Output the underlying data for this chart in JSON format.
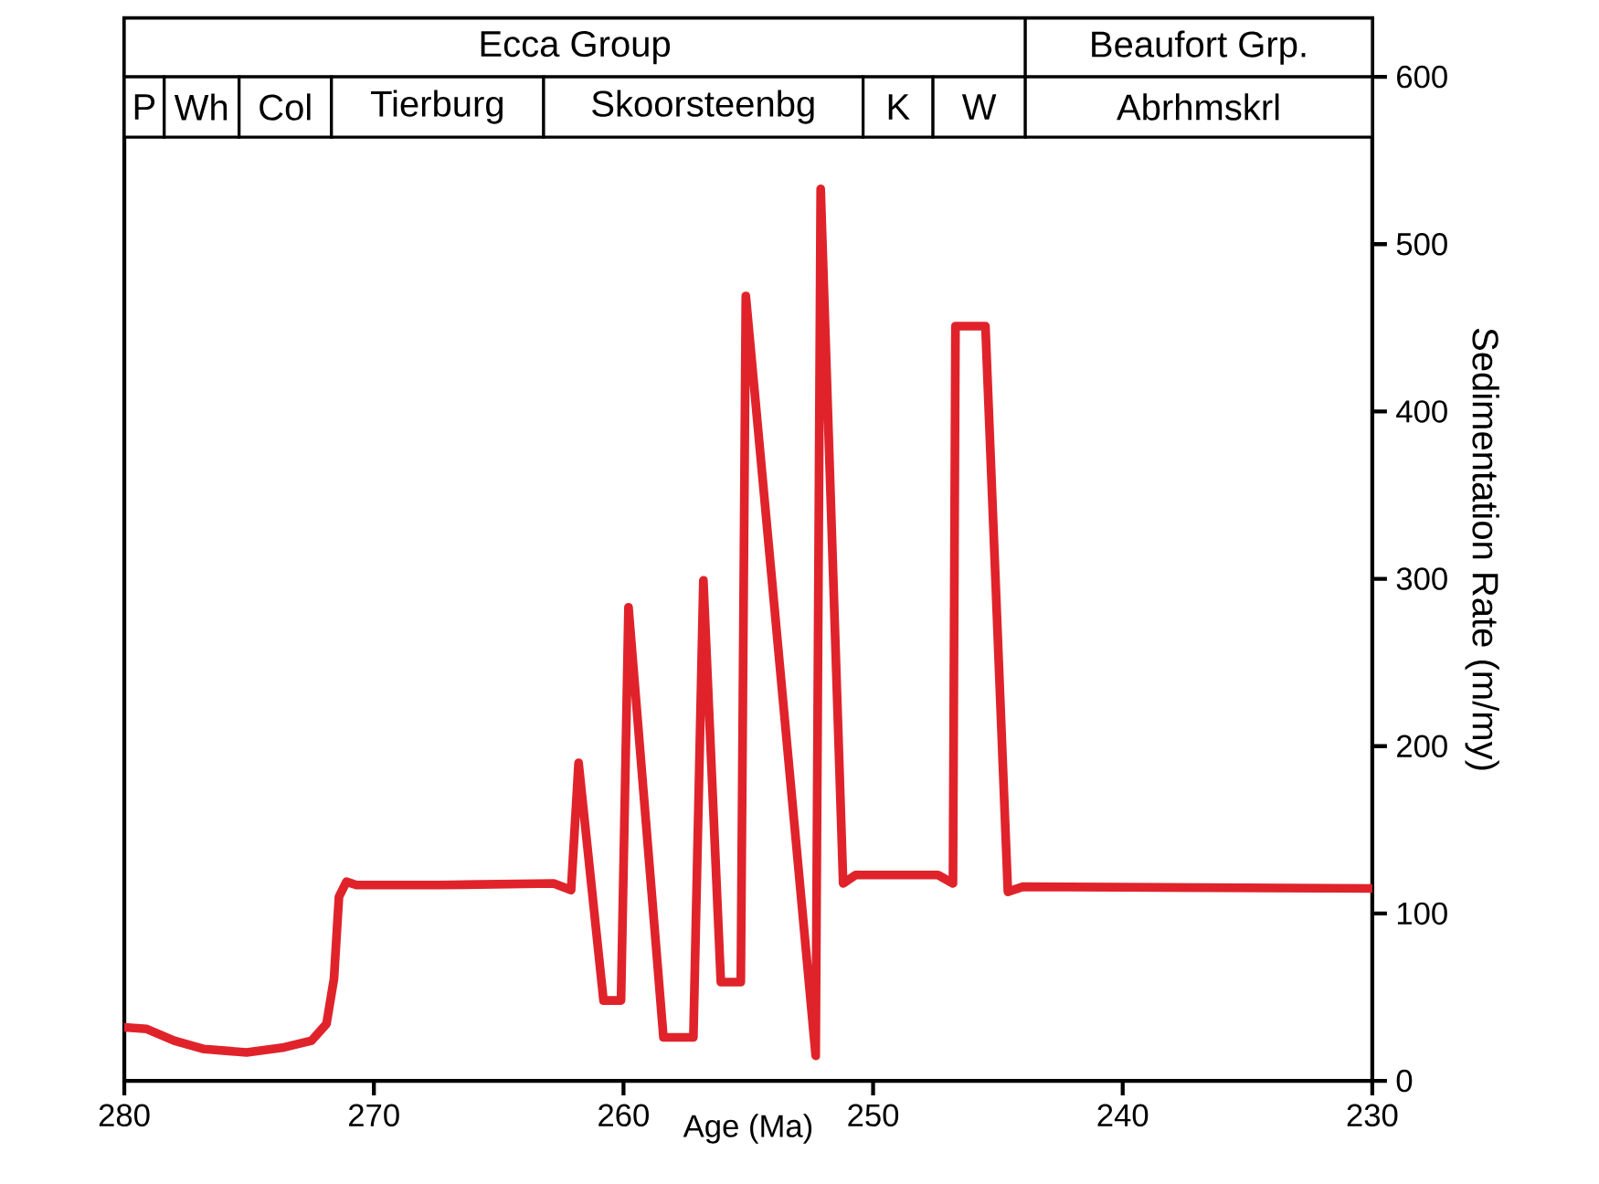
{
  "chart_data": {
    "type": "line",
    "xlabel": "Age (Ma)",
    "ylabel": "Sedimentation Rate (m/my)",
    "xlim": [
      280,
      230
    ],
    "xticks": [
      280,
      270,
      260,
      250,
      240,
      230
    ],
    "ylim": [
      0,
      635
    ],
    "yticks": [
      0,
      100,
      200,
      300,
      400,
      500,
      600
    ],
    "grid": false,
    "marker": "none",
    "line_style": "solid",
    "series": [
      {
        "color": "#e0232b",
        "x": [
          280,
          279.1,
          278.0,
          276.8,
          275.1,
          273.6,
          272.5,
          271.9,
          271.6,
          271.4,
          271.1,
          270.7,
          267.4,
          262.8,
          262.1,
          261.8,
          260.8,
          260.1,
          259.8,
          258.4,
          257.2,
          256.8,
          256.1,
          255.3,
          255.1,
          252.3,
          252.1,
          251.2,
          250.7,
          247.4,
          246.8,
          246.7,
          245.5,
          244.6,
          244.0,
          230
        ],
        "values": [
          32,
          31,
          24,
          19,
          17,
          20,
          24,
          34,
          61,
          110,
          119,
          117,
          117,
          118,
          114,
          190,
          48,
          48,
          283,
          26,
          26,
          299,
          59,
          59,
          469,
          15,
          533,
          118,
          123,
          123,
          118,
          451,
          451,
          113,
          116,
          115
        ]
      }
    ],
    "bands": [
      {
        "axis": "x",
        "from": 280,
        "to": 243.9,
        "label": "Ecca Group"
      },
      {
        "axis": "x",
        "from": 243.9,
        "to": 230,
        "label": "Beaufort Grp."
      },
      {
        "axis": "x",
        "from": 280,
        "to": 278.4,
        "label": "P"
      },
      {
        "axis": "x",
        "from": 278.4,
        "to": 275.4,
        "label": "Wh"
      },
      {
        "axis": "x",
        "from": 275.4,
        "to": 271.7,
        "label": "Col"
      },
      {
        "axis": "x",
        "from": 271.7,
        "to": 263.2,
        "label": "Tierburg"
      },
      {
        "axis": "x",
        "from": 263.2,
        "to": 250.4,
        "label": "Skoorsteenbg"
      },
      {
        "axis": "x",
        "from": 250.4,
        "to": 247.6,
        "label": "K"
      },
      {
        "axis": "x",
        "from": 247.6,
        "to": 243.9,
        "label": "W"
      },
      {
        "axis": "x",
        "from": 243.9,
        "to": 230,
        "label": "Abrhmskrl"
      }
    ]
  }
}
